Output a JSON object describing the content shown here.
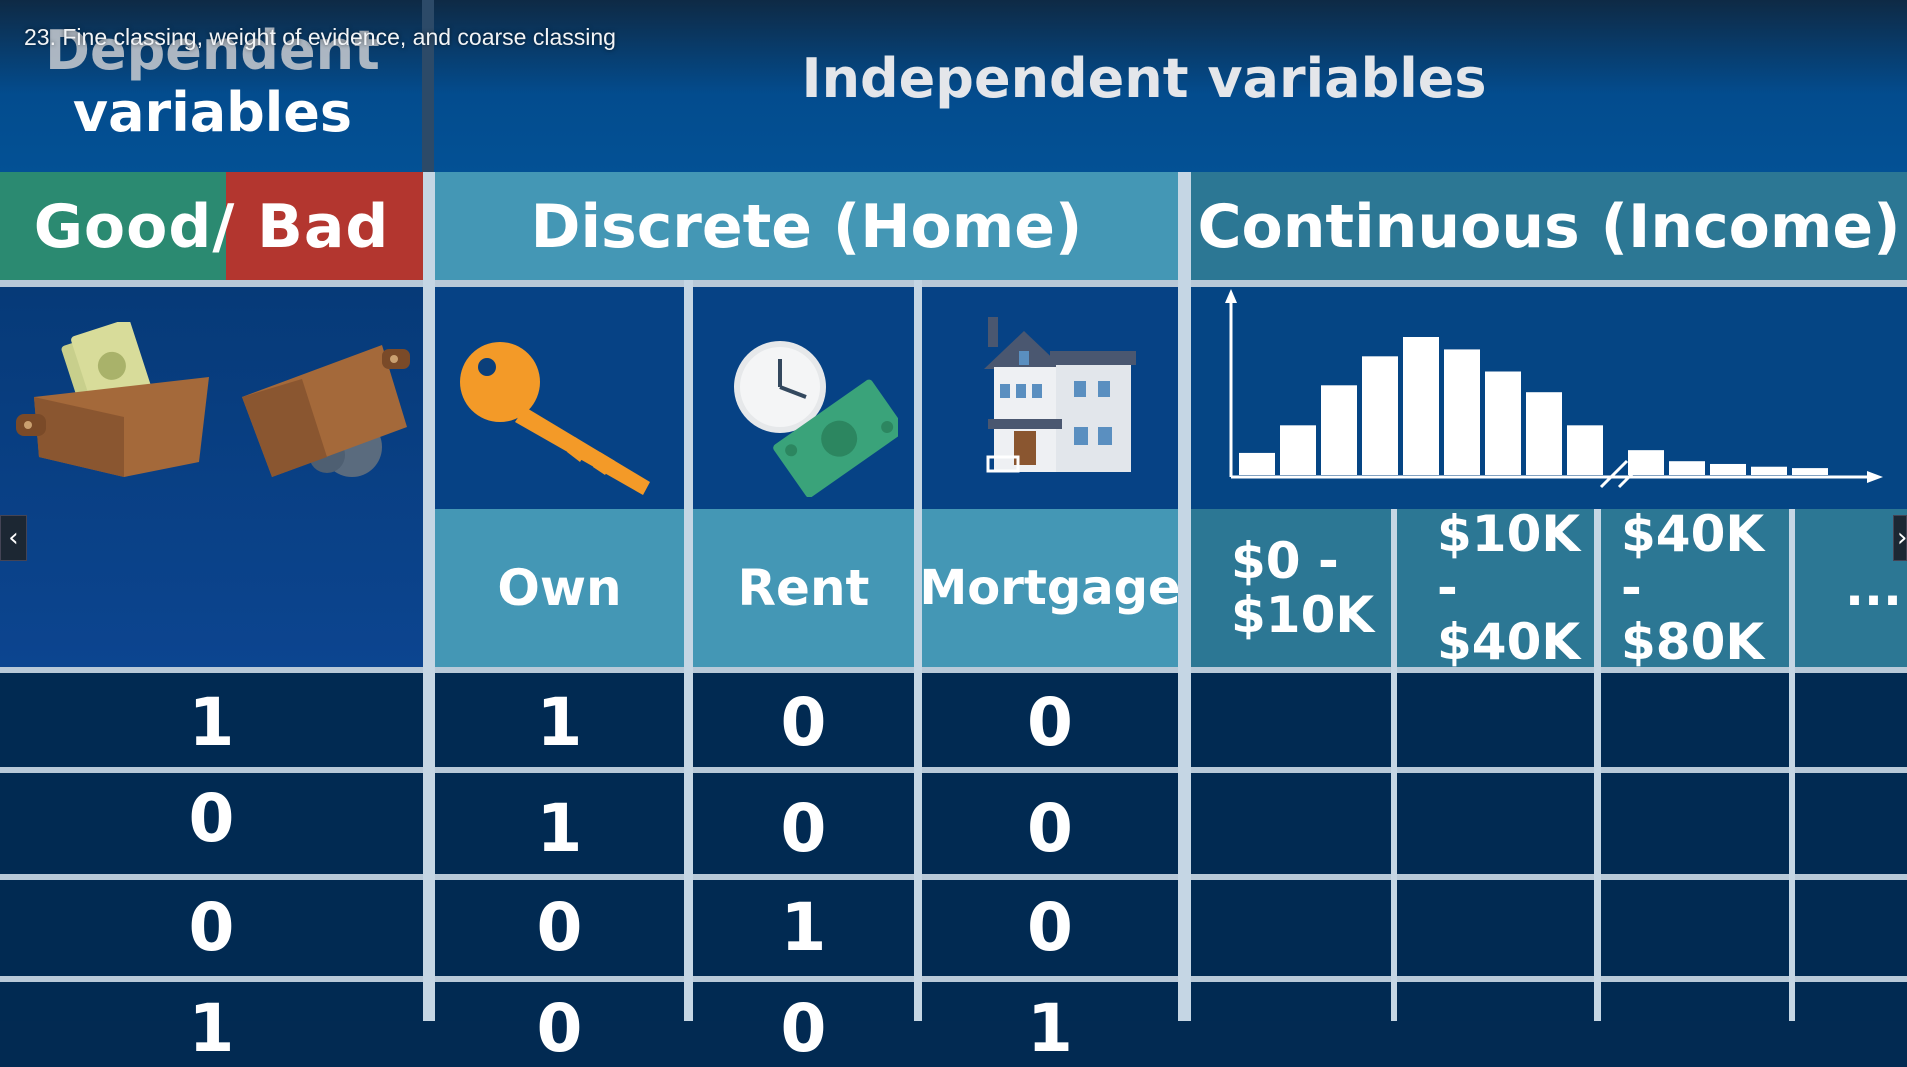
{
  "video": {
    "caption": "23. Fine classing, weight of evidence, and coarse classing"
  },
  "header": {
    "dependent_line1": "Dependent",
    "dependent_line2": "variables",
    "independent": "Independent variables"
  },
  "categories": {
    "good_bad": "Good/ Bad",
    "discrete": "Discrete (Home)",
    "continuous": "Continuous (Income)"
  },
  "home_labels": [
    "Own",
    "Rent",
    "Mortgage"
  ],
  "income_bins": [
    {
      "line1": "$0 -",
      "line2": "$10K"
    },
    {
      "line1": "$10K -",
      "line2": "$40K"
    },
    {
      "line1": "$40K -",
      "line2": "$80K"
    },
    {
      "line1": "...",
      "line2": ""
    }
  ],
  "rows": [
    {
      "good_bad": "1",
      "own": "1",
      "rent": "0",
      "mortgage": "0"
    },
    {
      "good_bad": "0",
      "own": "1",
      "rent": "0",
      "mortgage": "0"
    },
    {
      "good_bad": "0",
      "own": "0",
      "rent": "1",
      "mortgage": "0"
    },
    {
      "good_bad": "1",
      "own": "0",
      "rent": "0",
      "mortgage": "1"
    }
  ],
  "histogram": {
    "heights": [
      0.16,
      0.36,
      0.65,
      0.86,
      1.0,
      0.91,
      0.75,
      0.6,
      0.36,
      0.18,
      0.1,
      0.08,
      0.06,
      0.05
    ]
  },
  "colors": {
    "good": "#2b8a71",
    "bad": "#b3362f",
    "discrete": "#4497b5",
    "continuous": "#2c7794",
    "row_bg": "#012a52"
  },
  "icons": [
    "wallet-full-icon",
    "wallet-empty-icon",
    "key-icon",
    "clock-cash-icon",
    "house-icon",
    "histogram-icon"
  ],
  "nav": {
    "prev": "‹",
    "next": "›"
  }
}
